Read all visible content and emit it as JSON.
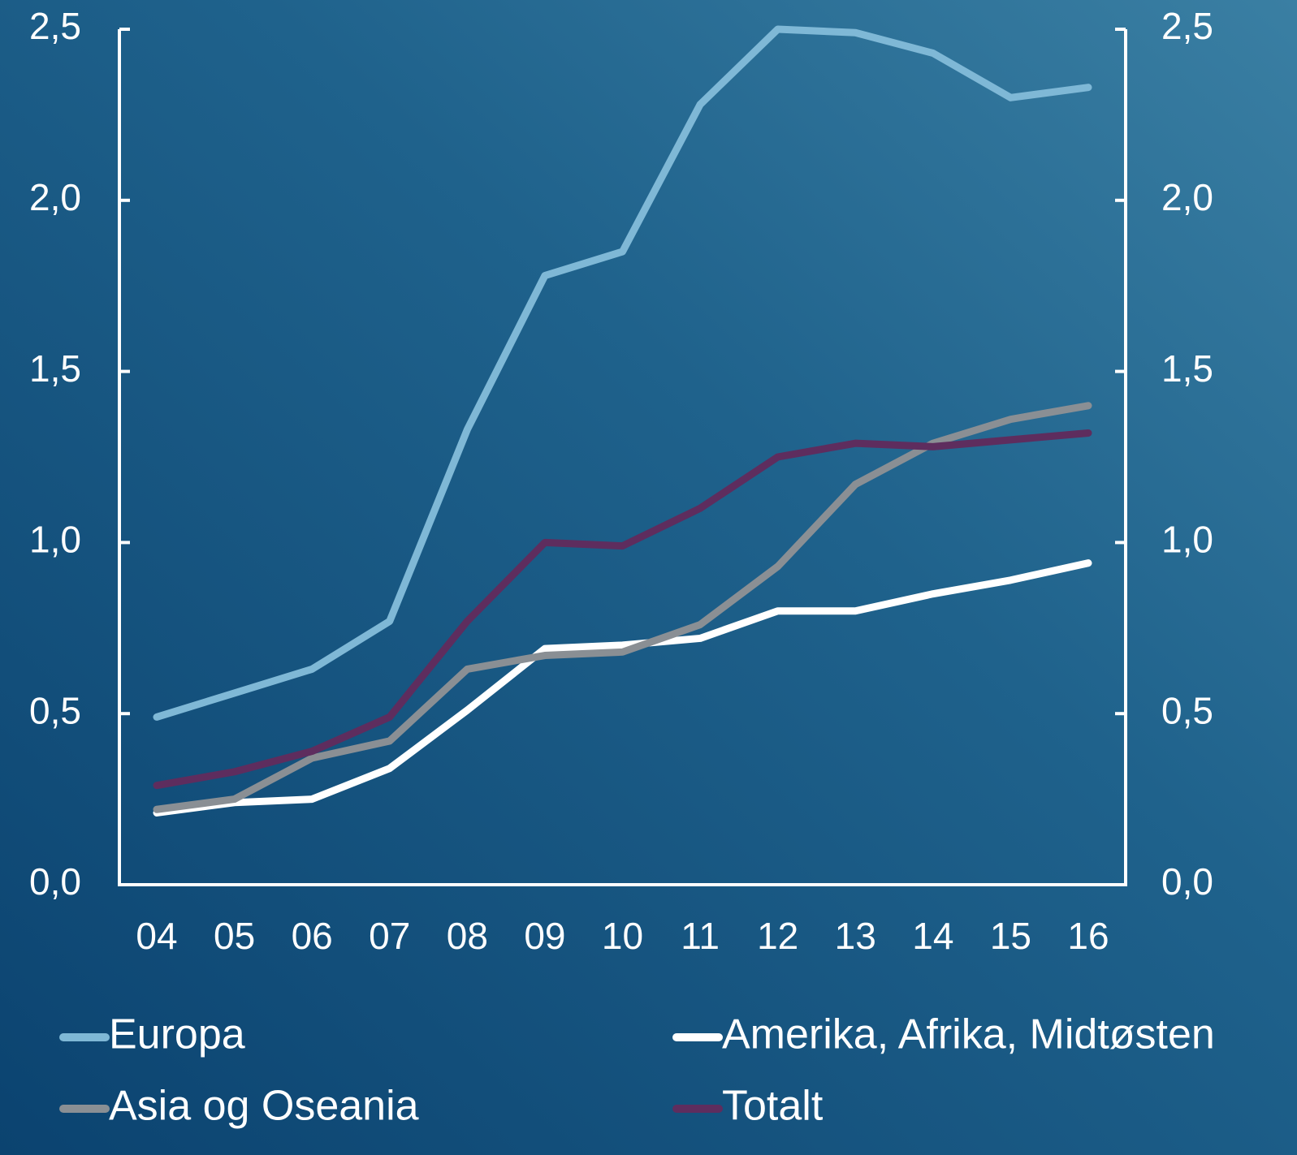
{
  "chart_data": {
    "type": "line",
    "categories": [
      "04",
      "05",
      "06",
      "07",
      "08",
      "09",
      "10",
      "11",
      "12",
      "13",
      "14",
      "15",
      "16"
    ],
    "series": [
      {
        "name": "Europa",
        "color": "#7fb8d6",
        "values": [
          0.49,
          0.56,
          0.63,
          0.77,
          1.33,
          1.78,
          1.85,
          2.28,
          2.5,
          2.49,
          2.43,
          2.3,
          2.33
        ]
      },
      {
        "name": "Amerika, Afrika, Midtøsten",
        "color": "#ffffff",
        "values": [
          0.21,
          0.24,
          0.25,
          0.34,
          0.51,
          0.69,
          0.7,
          0.72,
          0.8,
          0.8,
          0.85,
          0.89,
          0.94
        ]
      },
      {
        "name": "Asia og Oseania",
        "color": "#8a8f94",
        "values": [
          0.22,
          0.25,
          0.37,
          0.42,
          0.63,
          0.67,
          0.68,
          0.76,
          0.93,
          1.17,
          1.29,
          1.36,
          1.4
        ]
      },
      {
        "name": "Totalt",
        "color": "#5e2d5e",
        "values": [
          0.29,
          0.33,
          0.39,
          0.49,
          0.77,
          1.0,
          0.99,
          1.1,
          1.25,
          1.29,
          1.28,
          1.3,
          1.32
        ]
      }
    ],
    "ylim": [
      0,
      2.5
    ],
    "yticks": [
      {
        "value": 0,
        "label": "0,0"
      },
      {
        "value": 0.5,
        "label": "0,5"
      },
      {
        "value": 1,
        "label": "1,0"
      },
      {
        "value": 1.5,
        "label": "1,5"
      },
      {
        "value": 2,
        "label": "2,0"
      },
      {
        "value": 2.5,
        "label": "2,5"
      }
    ],
    "y2lim": [
      0,
      2.5
    ],
    "y2ticks": [
      {
        "value": 0,
        "label": "0,0"
      },
      {
        "value": 0.5,
        "label": "0,5"
      },
      {
        "value": 1,
        "label": "1,0"
      },
      {
        "value": 1.5,
        "label": "1,5"
      },
      {
        "value": 2,
        "label": "2,0"
      },
      {
        "value": 2.5,
        "label": "2,5"
      }
    ]
  }
}
